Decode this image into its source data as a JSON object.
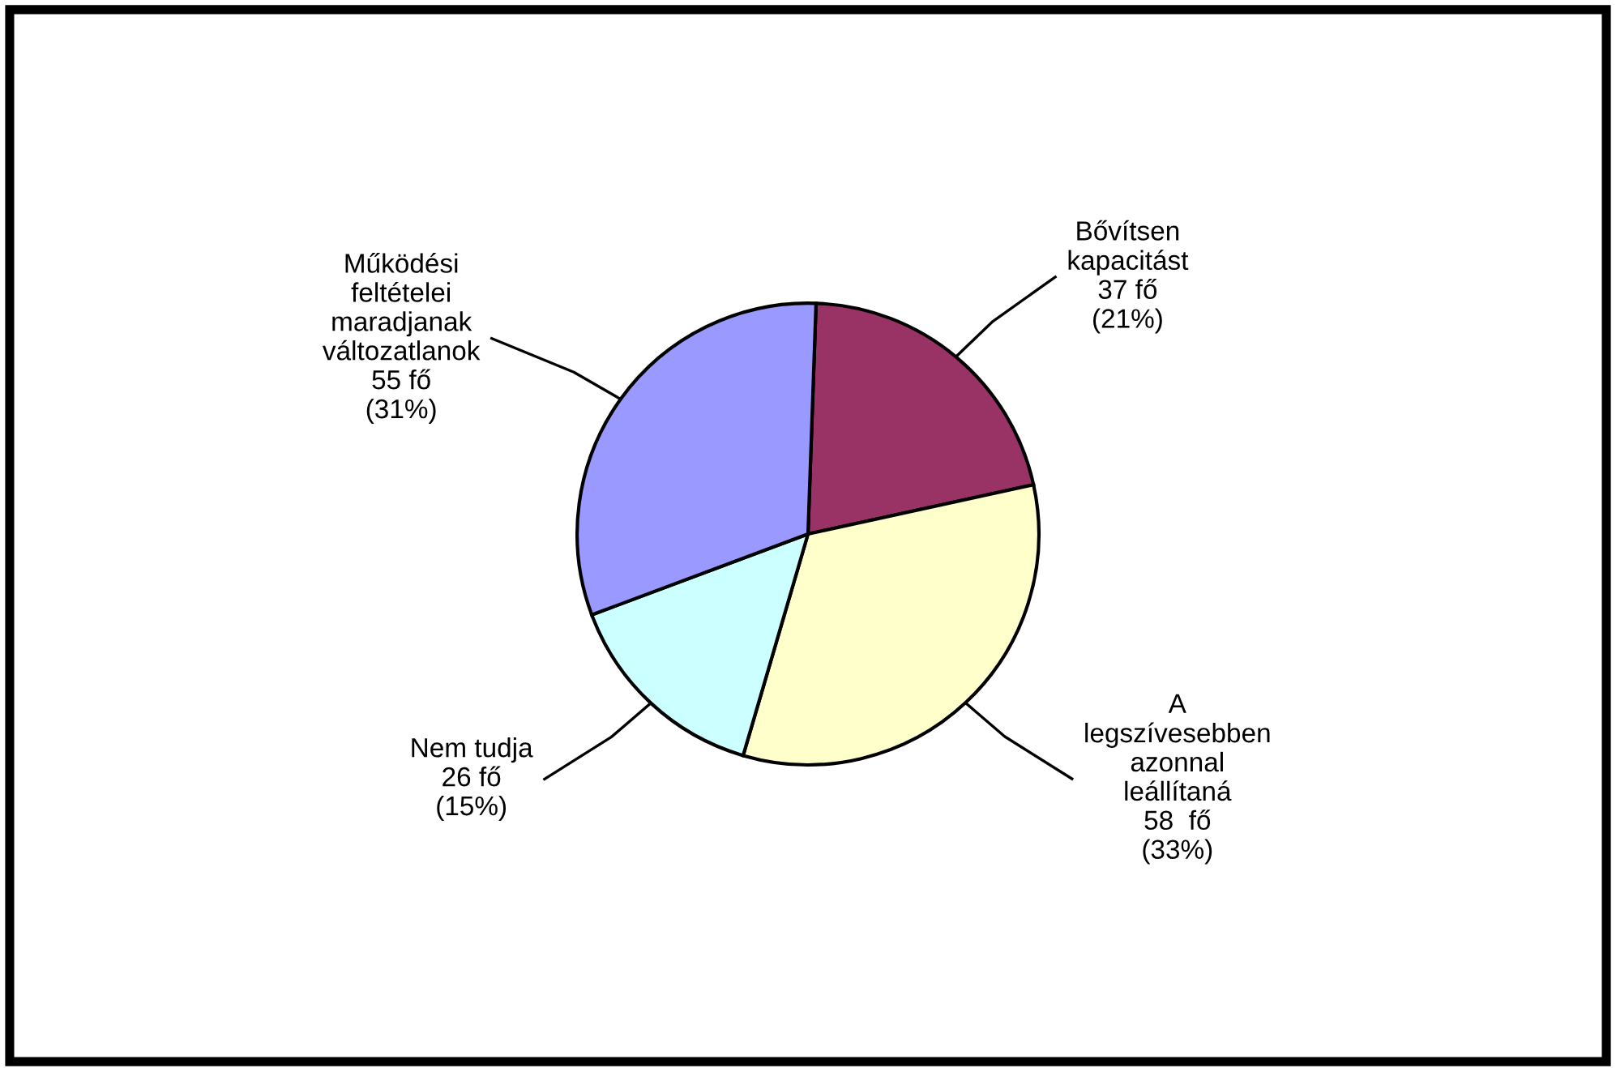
{
  "chart_data": {
    "type": "pie",
    "categories": [
      "Bővítsen\nkapacitást",
      "A\nlegszívesebben\nazonnal\nleállítaná",
      "Nem tudja",
      "Működési\nfeltételei\nmaradjanak\nváltozatlanok"
    ],
    "values": [
      37,
      58,
      26,
      55
    ],
    "value_labels": [
      "37 fő\n(21%)",
      "58  fő\n(33%)",
      "26 fő\n(15%)",
      "55 fő\n(31%)"
    ],
    "colors": [
      "#993366",
      "#ffffcc",
      "#ccffff",
      "#9999ff"
    ],
    "legend": false
  }
}
